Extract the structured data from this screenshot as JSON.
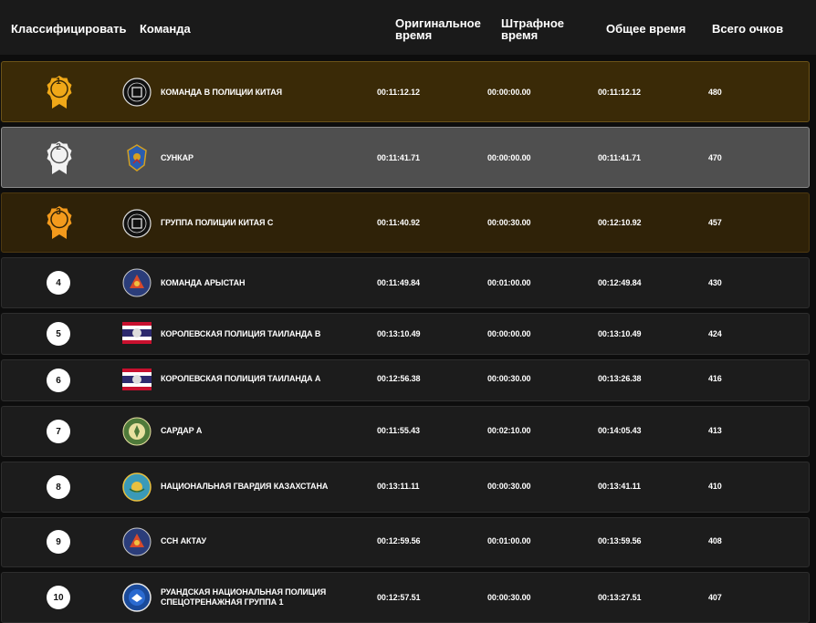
{
  "header": {
    "rank": "Классифицировать",
    "team": "Команда",
    "original_time": "Оригинальное время",
    "penalty_time": "Штрафное время",
    "total_time": "Общее время",
    "total_points": "Всего очков"
  },
  "colors": {
    "gold_medal": "#f0a818",
    "silver_medal": "#f2f2f2",
    "bronze_medal": "#f39a1c",
    "gold_row": "#3a2a07",
    "silver_row": "#4f4f4f",
    "bronze_row": "#2f2208",
    "default_row": "#1c1c1c"
  },
  "rows": [
    {
      "rank": "1",
      "team": "КОМАНДА В ПОЛИЦИИ КИТАЯ",
      "original": "00:11:12.12",
      "penalty": "00:00:00.00",
      "total": "00:11:12.12",
      "points": "480",
      "logo": "china-police-emblem-icon"
    },
    {
      "rank": "2",
      "team": "СУНКАР",
      "original": "00:11:41.71",
      "penalty": "00:00:00.00",
      "total": "00:11:41.71",
      "points": "470",
      "logo": "sunkar-emblem-icon"
    },
    {
      "rank": "3",
      "team": "ГРУППА ПОЛИЦИИ КИТАЯ С",
      "original": "00:11:40.92",
      "penalty": "00:00:30.00",
      "total": "00:12:10.92",
      "points": "457",
      "logo": "china-police-emblem-icon"
    },
    {
      "rank": "4",
      "team": "КОМАНДА АРЫСТАН",
      "original": "00:11:49.84",
      "penalty": "00:01:00.00",
      "total": "00:12:49.84",
      "points": "430",
      "logo": "arystan-emblem-icon"
    },
    {
      "rank": "5",
      "team": "КОРОЛЕВСКАЯ ПОЛИЦИЯ ТАИЛАНДА B",
      "original": "00:13:10.49",
      "penalty": "00:00:00.00",
      "total": "00:13:10.49",
      "points": "424",
      "logo": "thailand-flag-icon"
    },
    {
      "rank": "6",
      "team": "КОРОЛЕВСКАЯ ПОЛИЦИЯ ТАИЛАНДА А",
      "original": "00:12:56.38",
      "penalty": "00:00:30.00",
      "total": "00:13:26.38",
      "points": "416",
      "logo": "thailand-flag-icon"
    },
    {
      "rank": "7",
      "team": "САРДАР А",
      "original": "00:11:55.43",
      "penalty": "00:02:10.00",
      "total": "00:14:05.43",
      "points": "413",
      "logo": "sardar-emblem-icon"
    },
    {
      "rank": "8",
      "team": "НАЦИОНАЛЬНАЯ ГВАРДИЯ КАЗАХСТАНА",
      "original": "00:13:11.11",
      "penalty": "00:00:30.00",
      "total": "00:13:41.11",
      "points": "410",
      "logo": "kazakhstan-guard-emblem-icon"
    },
    {
      "rank": "9",
      "team": "ССН АКТАУ",
      "original": "00:12:59.56",
      "penalty": "00:01:00.00",
      "total": "00:13:59.56",
      "points": "408",
      "logo": "aktau-emblem-icon"
    },
    {
      "rank": "10",
      "team": "РУАНДСКАЯ НАЦИОНАЛЬНАЯ ПОЛИЦИЯ СПЕЦОТРЕНАЖНАЯ ГРУППА 1",
      "original": "00:12:57.51",
      "penalty": "00:00:30.00",
      "total": "00:13:27.51",
      "points": "407",
      "logo": "rwanda-police-emblem-icon"
    }
  ]
}
